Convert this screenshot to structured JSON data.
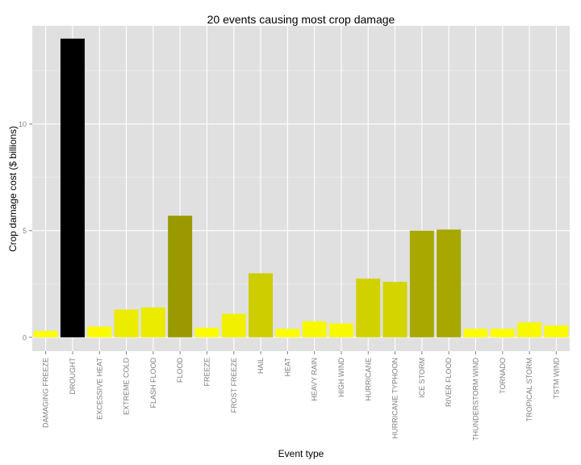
{
  "chart_data": {
    "type": "bar",
    "title": "20 events causing most crop damage",
    "xlabel": "Event type",
    "ylabel": "Crop damage cost ($ billions)",
    "ylim": [
      -0.65,
      14.6
    ],
    "yticks": [
      0,
      5,
      10
    ],
    "grid": true,
    "legend": "none",
    "categories": [
      "DAMAGING FREEZE",
      "DROUGHT",
      "EXCESSIVE HEAT",
      "EXTREME COLD",
      "FLASH FLOOD",
      "FLOOD",
      "FREEZE",
      "FROST FREEZE",
      "HAIL",
      "HEAT",
      "HEAVY RAIN",
      "HIGH WIND",
      "HURRICANE",
      "HURRICANE TYPHOON",
      "ICE STORM",
      "RIVER FLOOD",
      "THUNDERSTORM WIND",
      "TORNADO",
      "TROPICAL STORM",
      "TSTM WIND"
    ],
    "values": [
      0.3,
      14.0,
      0.5,
      1.3,
      1.4,
      5.7,
      0.45,
      1.1,
      3.0,
      0.4,
      0.75,
      0.65,
      2.75,
      2.6,
      5.0,
      5.05,
      0.4,
      0.4,
      0.7,
      0.55
    ],
    "colors": {
      "low": "#ffff00",
      "high": "#000000"
    },
    "panel_background": "#e0e0e0",
    "grid_color": "#ffffff"
  }
}
